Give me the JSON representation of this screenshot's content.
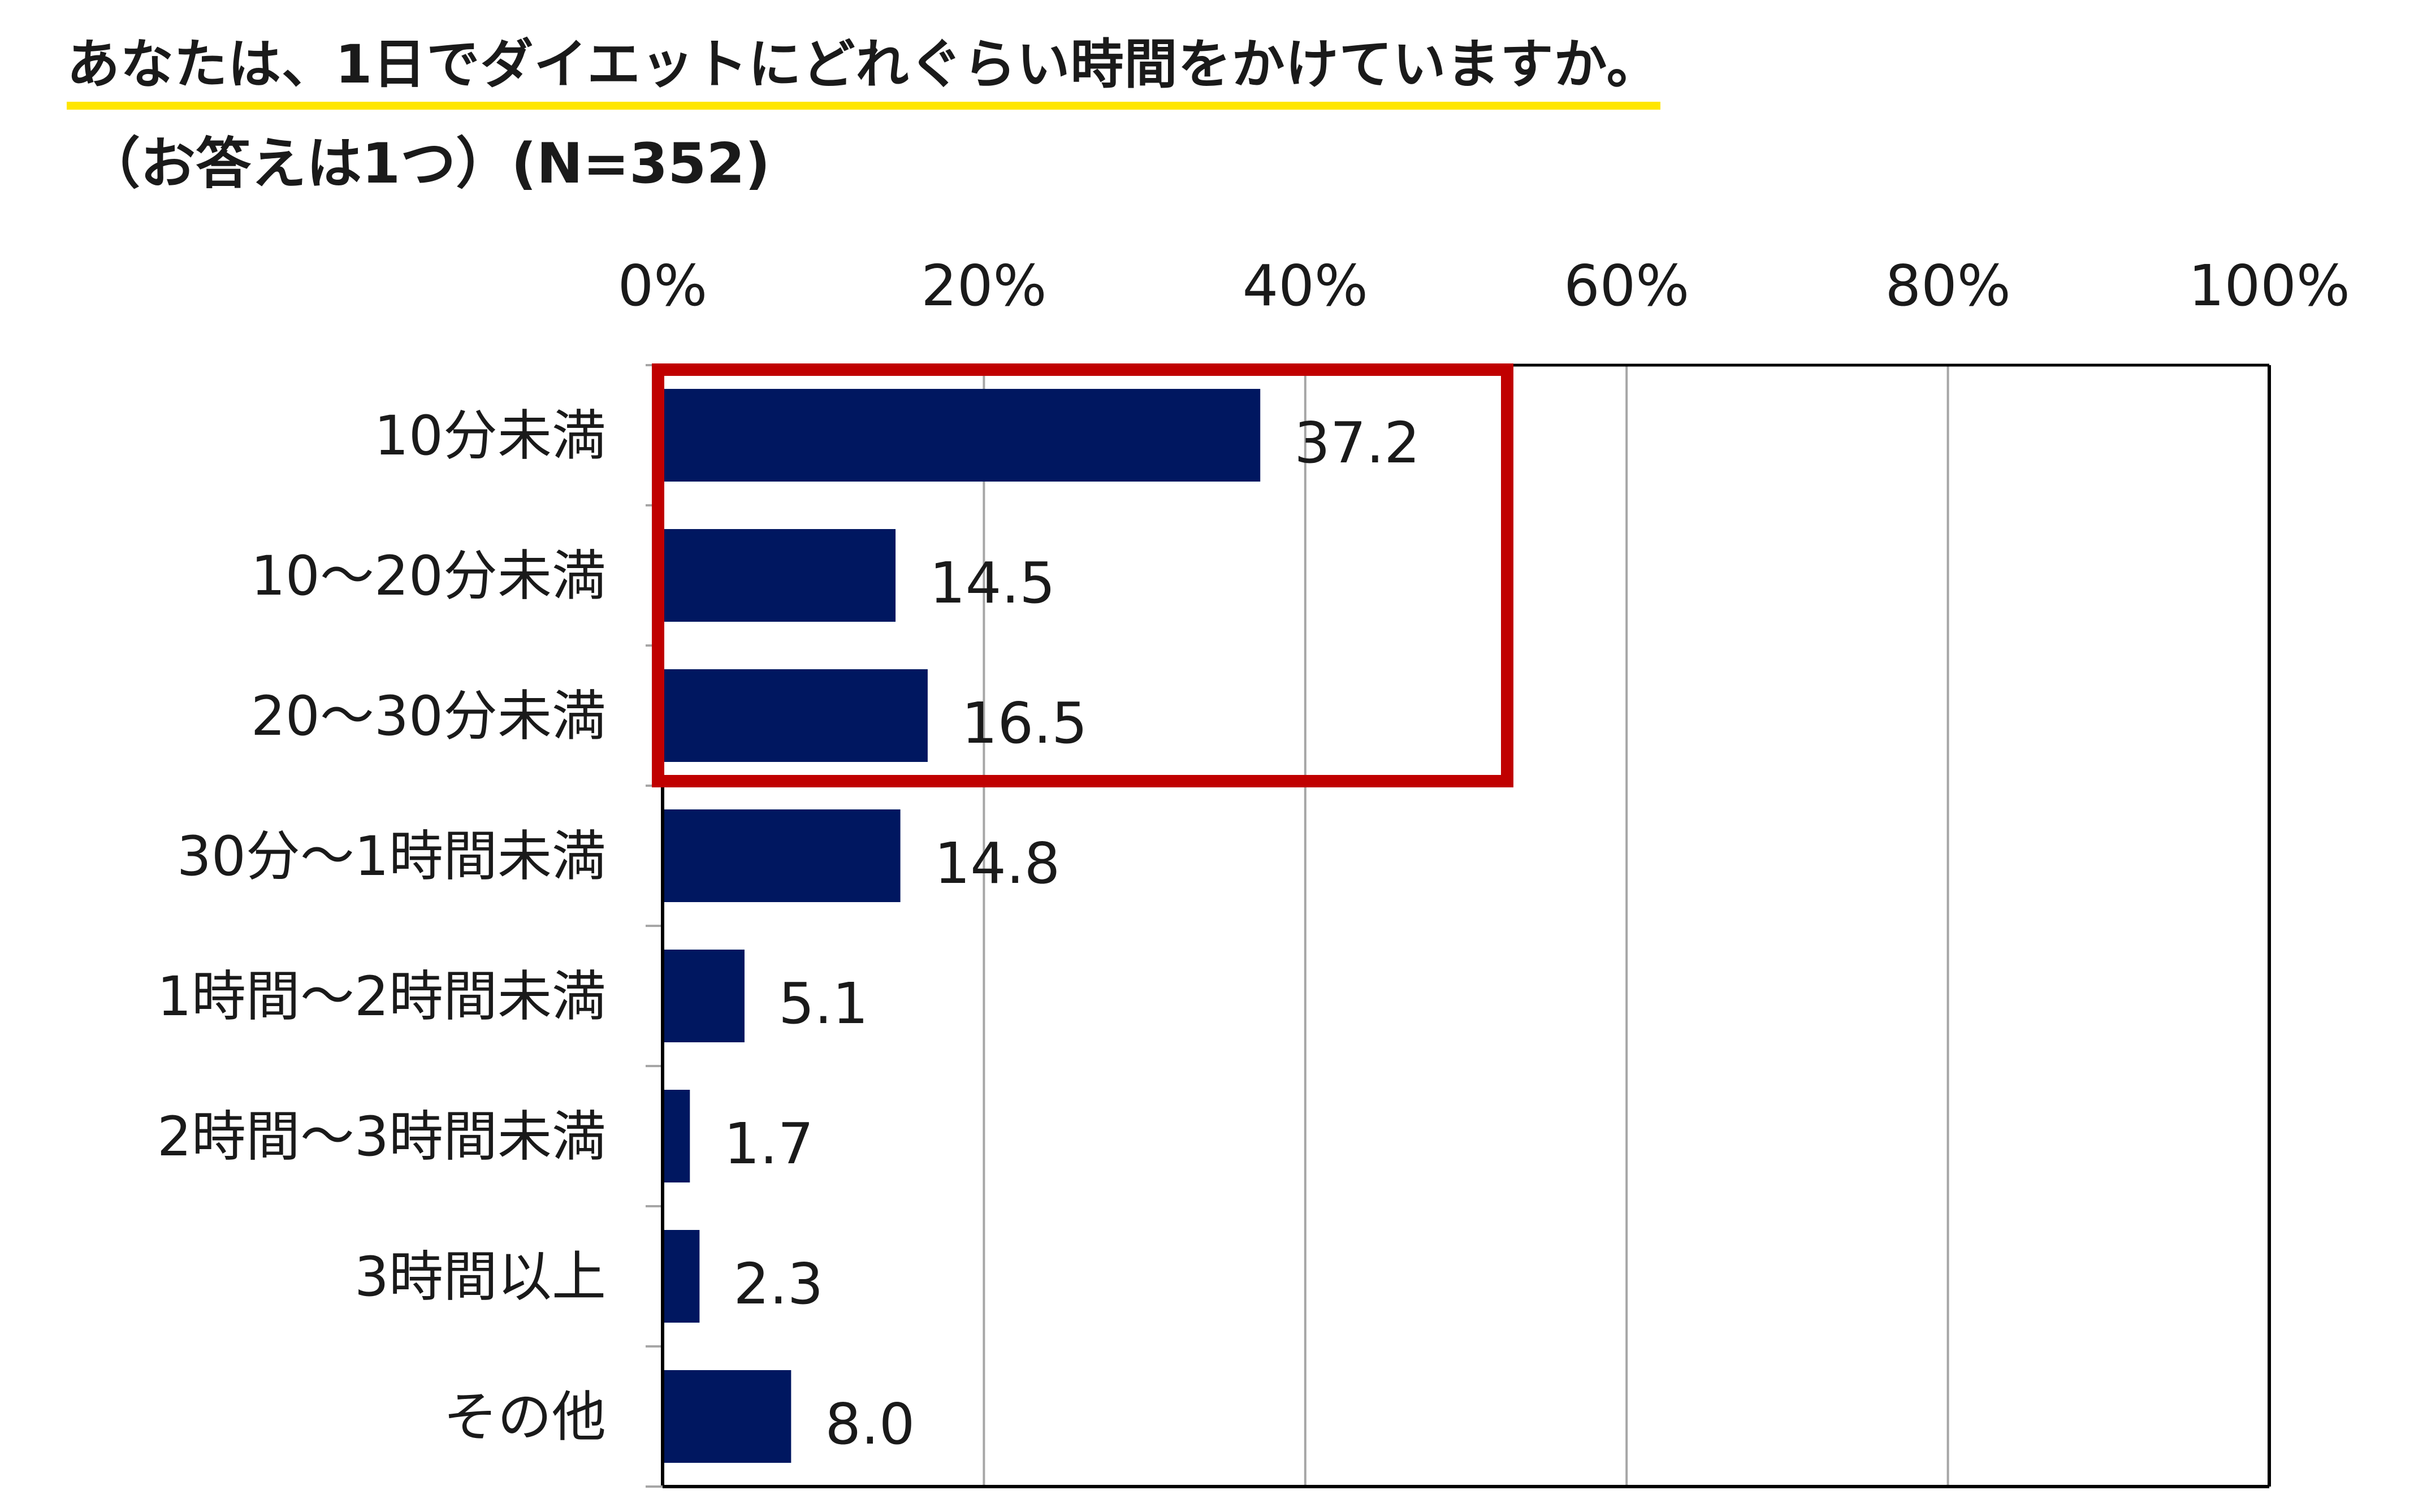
{
  "header": {
    "title": "あなたは、1日でダイエットにどれぐらい時間をかけていますか。",
    "subtitle": "（お答えは1つ）(N=352)"
  },
  "colors": {
    "bar": "#001760",
    "highlight_box": "#c00000",
    "title_underline": "#ffe600",
    "gridline": "#a6a6a6",
    "frame": "#000000"
  },
  "chart_data": {
    "type": "bar",
    "orientation": "horizontal",
    "categories": [
      "10分未満",
      "10～20分未満",
      "20～30分未満",
      "30分～1時間未満",
      "1時間～2時間未満",
      "2時間～3時間未満",
      "3時間以上",
      "その他"
    ],
    "values": [
      37.2,
      14.5,
      16.5,
      14.8,
      5.1,
      1.7,
      2.3,
      8.0
    ],
    "value_labels": [
      "37.2",
      "14.5",
      "16.5",
      "14.8",
      "5.1",
      "1.7",
      "2.3",
      "8.0"
    ],
    "x_ticks": [
      "0%",
      "20%",
      "40%",
      "60%",
      "80%",
      "100%"
    ],
    "x_tick_values": [
      0,
      20,
      40,
      60,
      80,
      100
    ],
    "xlim": [
      0,
      100
    ],
    "x_axis_position": "top",
    "grid": true,
    "legend": "none",
    "highlighted_categories": [
      "10分未満",
      "10～20分未満",
      "20～30分未満"
    ]
  }
}
